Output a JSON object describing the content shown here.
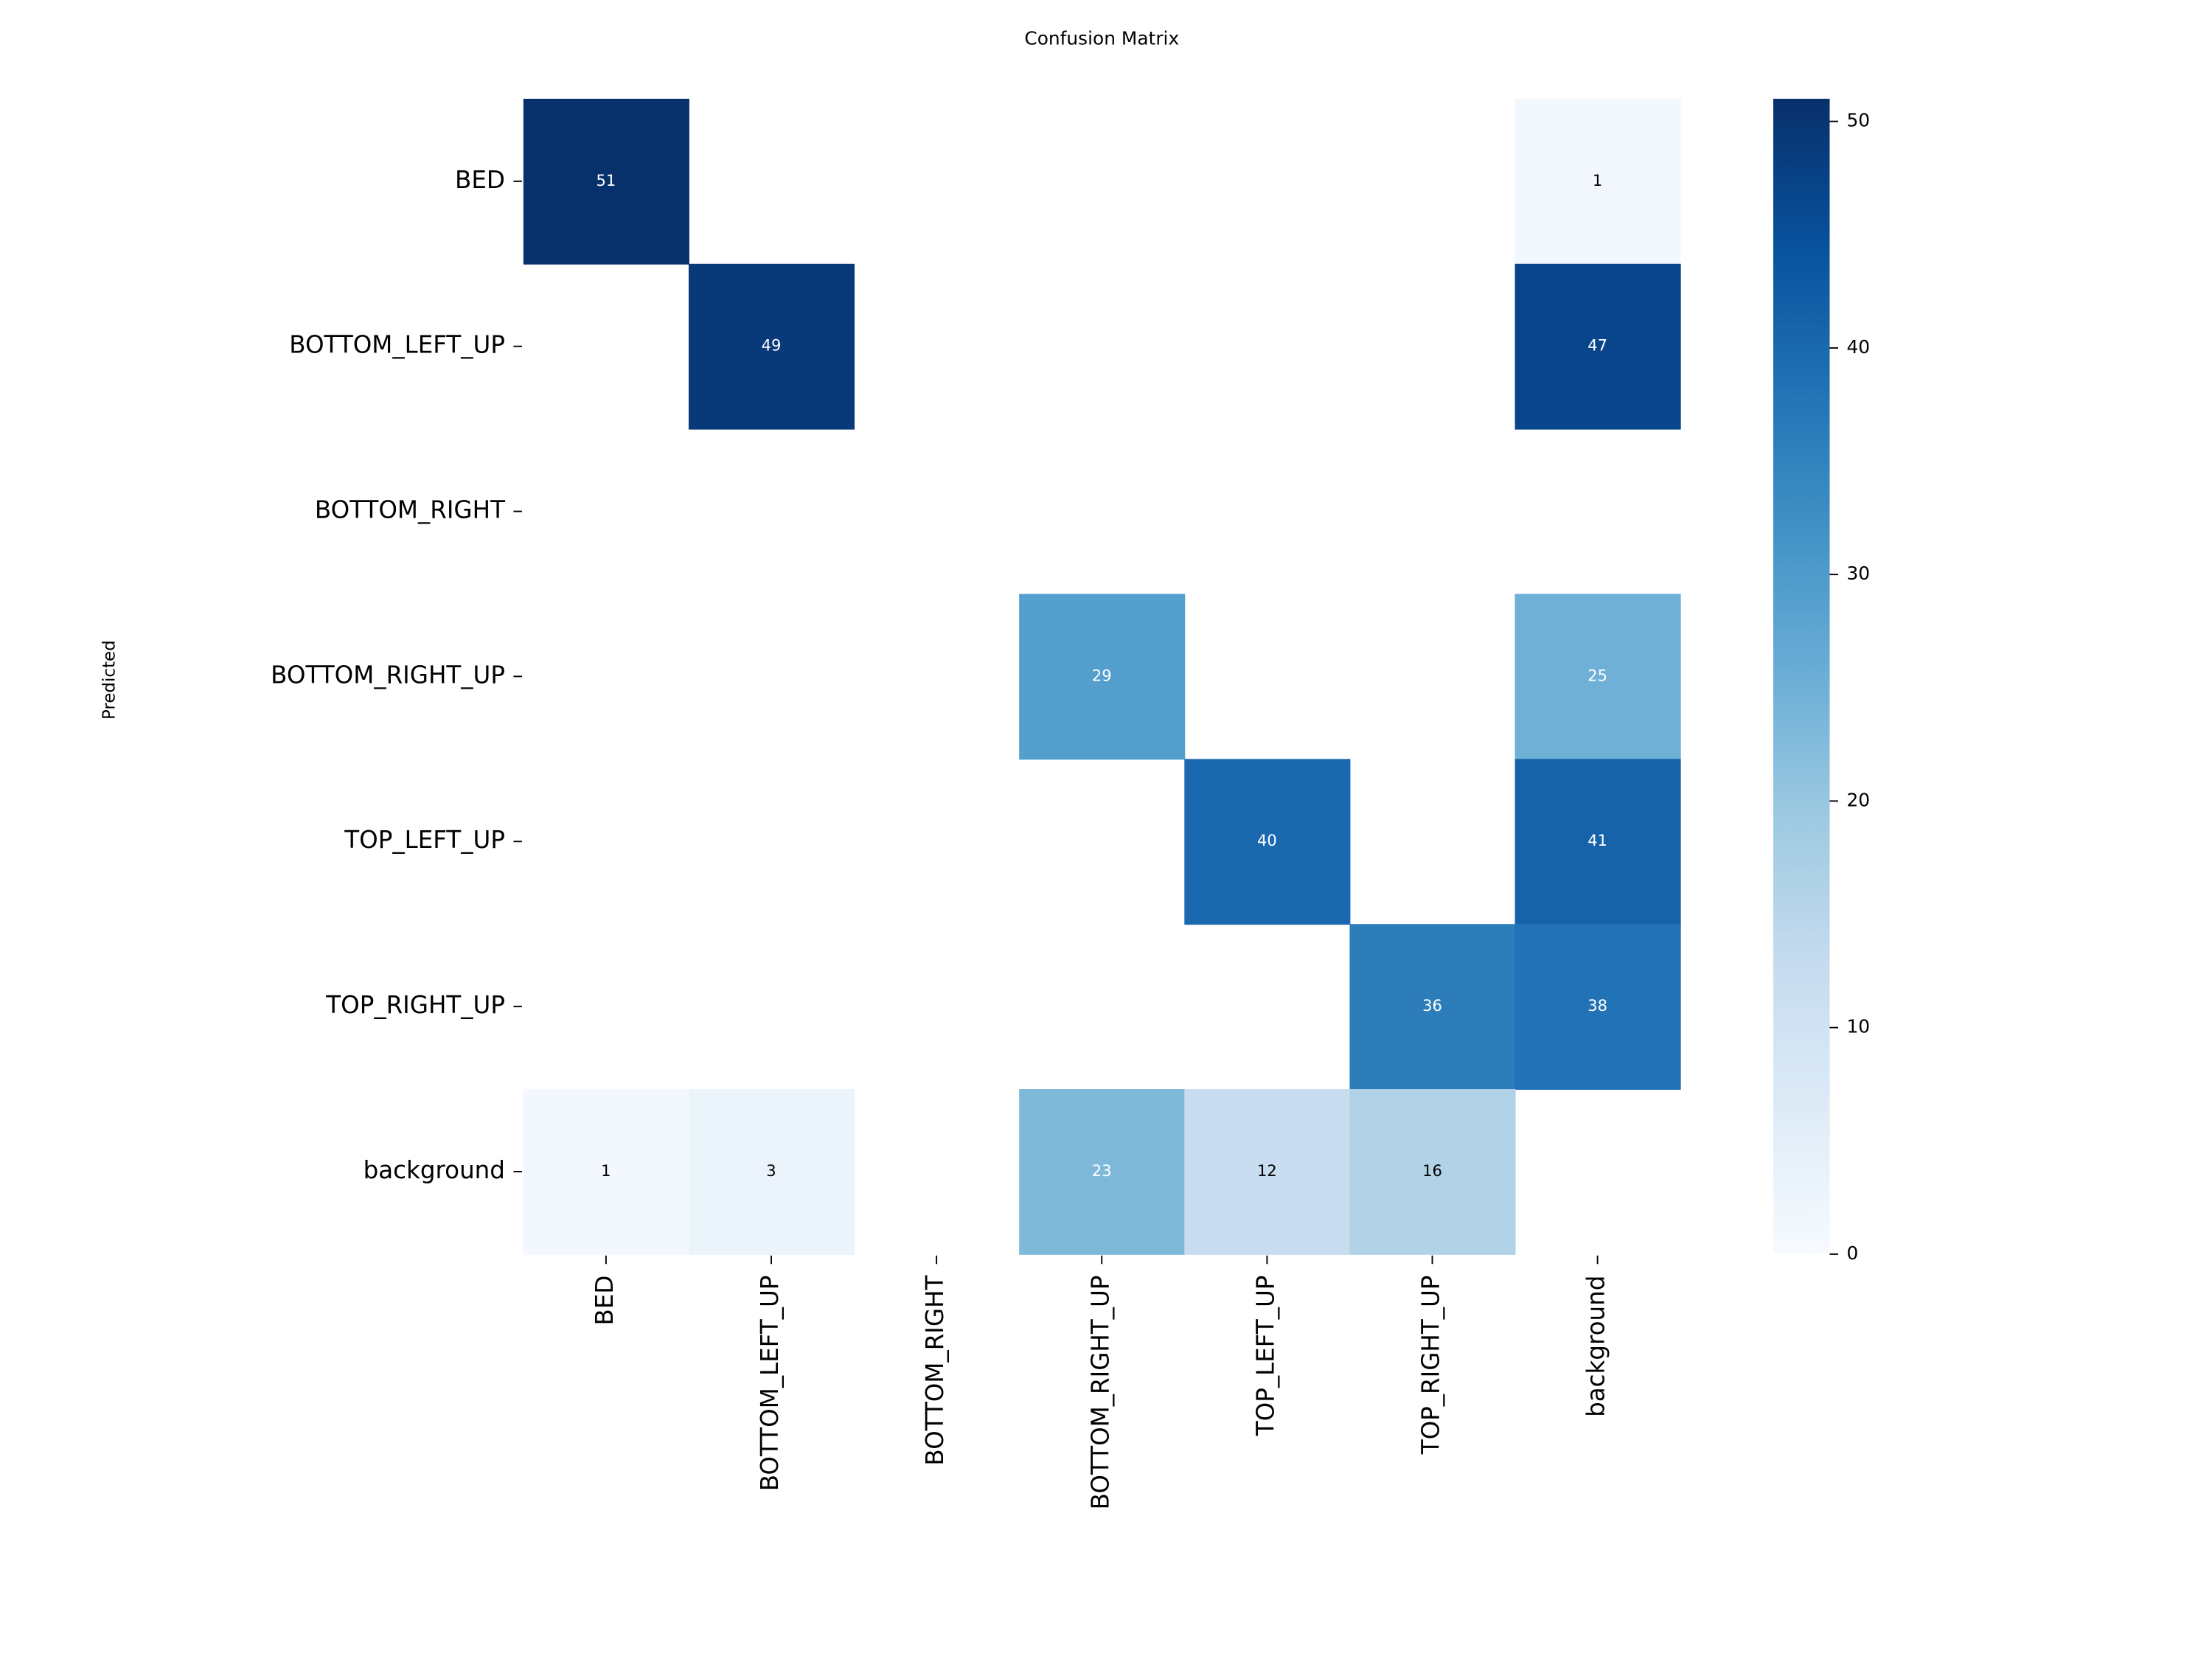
{
  "chart_data": {
    "type": "heatmap",
    "title": "Confusion Matrix",
    "y_label": "Predicted",
    "columns": [
      "BED",
      "BOTTOM_LEFT_UP",
      "BOTTOM_RIGHT",
      "BOTTOM_RIGHT_UP",
      "TOP_LEFT_UP",
      "TOP_RIGHT_UP",
      "background"
    ],
    "rows": [
      "BED",
      "BOTTOM_LEFT_UP",
      "BOTTOM_RIGHT",
      "BOTTOM_RIGHT_UP",
      "TOP_LEFT_UP",
      "TOP_RIGHT_UP",
      "background"
    ],
    "values": [
      [
        51,
        null,
        null,
        null,
        null,
        null,
        1
      ],
      [
        null,
        49,
        null,
        null,
        null,
        null,
        47
      ],
      [
        null,
        null,
        null,
        null,
        null,
        null,
        null
      ],
      [
        null,
        null,
        null,
        29,
        null,
        null,
        25
      ],
      [
        null,
        null,
        null,
        null,
        40,
        null,
        41
      ],
      [
        null,
        null,
        null,
        null,
        null,
        36,
        38
      ],
      [
        1,
        3,
        null,
        23,
        12,
        16,
        null
      ]
    ],
    "clim": [
      0,
      51
    ],
    "cticks": [
      0,
      10,
      20,
      30,
      40,
      50
    ],
    "colormap": [
      "#f7fbff",
      "#deebf7",
      "#c6dbef",
      "#9ecae1",
      "#6baed6",
      "#4292c6",
      "#2171b5",
      "#08519c",
      "#08306b"
    ]
  }
}
